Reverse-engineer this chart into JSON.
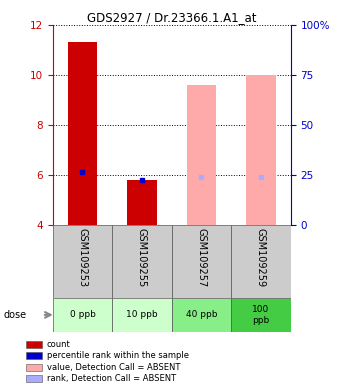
{
  "title": "GDS2927 / Dr.23366.1.A1_at",
  "samples": [
    "GSM109253",
    "GSM109255",
    "GSM109257",
    "GSM109259"
  ],
  "doses": [
    "0 ppb",
    "10 ppb",
    "40 ppb",
    "100\nppb"
  ],
  "left_ylim": [
    4,
    12
  ],
  "right_ylim": [
    0,
    100
  ],
  "left_yticks": [
    4,
    6,
    8,
    10,
    12
  ],
  "right_yticks": [
    0,
    25,
    50,
    75,
    100
  ],
  "right_yticklabels": [
    "0",
    "25",
    "50",
    "75",
    "100%"
  ],
  "count_values": [
    11.3,
    5.8,
    null,
    null
  ],
  "count_color": "#cc0000",
  "percentile_values": [
    6.1,
    5.8,
    null,
    null
  ],
  "percentile_color": "#0000cc",
  "absent_value_values": [
    null,
    null,
    9.6,
    10.0
  ],
  "absent_value_color": "#ffaaaa",
  "absent_rank_values": [
    null,
    null,
    5.9,
    5.9
  ],
  "absent_rank_color": "#aaaaff",
  "dose_colors": [
    "#ccffcc",
    "#ccffcc",
    "#88ee88",
    "#44cc44"
  ],
  "label_bg_color": "#cccccc",
  "bg_color": "#ffffff",
  "left_axis_color": "#cc0000",
  "right_axis_color": "#0000cc",
  "legend_items": [
    {
      "color": "#cc0000",
      "label": "count"
    },
    {
      "color": "#0000cc",
      "label": "percentile rank within the sample"
    },
    {
      "color": "#ffaaaa",
      "label": "value, Detection Call = ABSENT"
    },
    {
      "color": "#aaaaff",
      "label": "rank, Detection Call = ABSENT"
    }
  ]
}
